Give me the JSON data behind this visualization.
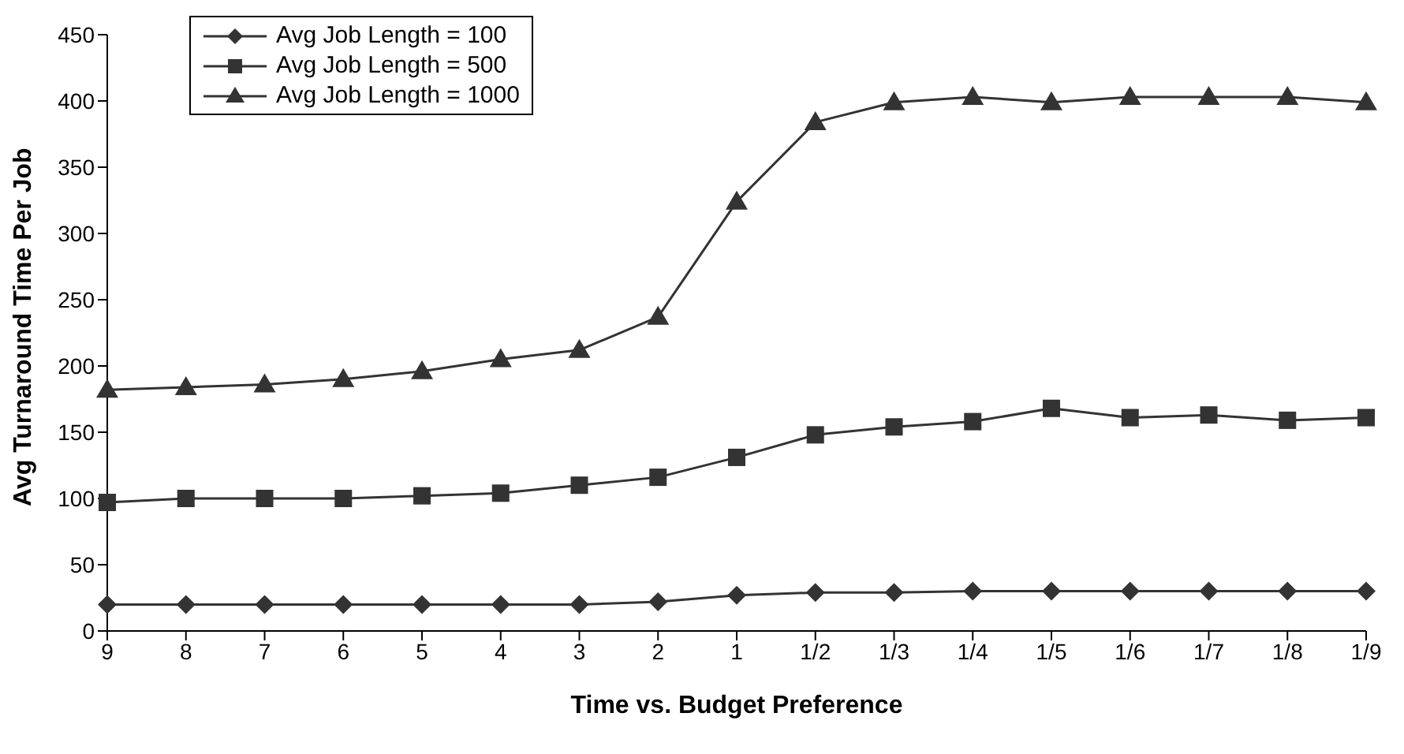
{
  "chart_data": {
    "type": "line",
    "xlabel": "Time vs. Budget Preference",
    "ylabel": "Avg Turnaround Time Per Job",
    "categories": [
      "9",
      "8",
      "7",
      "6",
      "5",
      "4",
      "3",
      "2",
      "1",
      "1/2",
      "1/3",
      "1/4",
      "1/5",
      "1/6",
      "1/7",
      "1/8",
      "1/9"
    ],
    "ylim": [
      0,
      450
    ],
    "yticks": [
      0,
      50,
      100,
      150,
      200,
      250,
      300,
      350,
      400,
      450
    ],
    "grid": false,
    "legend": "top left",
    "line_style": "solid",
    "series": [
      {
        "name": "Avg Job Length = 100",
        "color": "#333333",
        "marker": "diamond",
        "values": [
          20,
          20,
          20,
          20,
          20,
          20,
          20,
          22,
          27,
          29,
          29,
          30,
          30,
          30,
          30,
          30,
          30
        ]
      },
      {
        "name": "Avg Job Length = 500",
        "color": "#333333",
        "marker": "square",
        "values": [
          97,
          100,
          100,
          100,
          102,
          104,
          110,
          116,
          131,
          148,
          154,
          158,
          168,
          161,
          163,
          159,
          161
        ]
      },
      {
        "name": "Avg Job Length = 1000",
        "color": "#333333",
        "marker": "triangle",
        "values": [
          182,
          184,
          186,
          190,
          196,
          205,
          212,
          237,
          324,
          384,
          399,
          403,
          399,
          403,
          403,
          403,
          399
        ]
      }
    ]
  }
}
